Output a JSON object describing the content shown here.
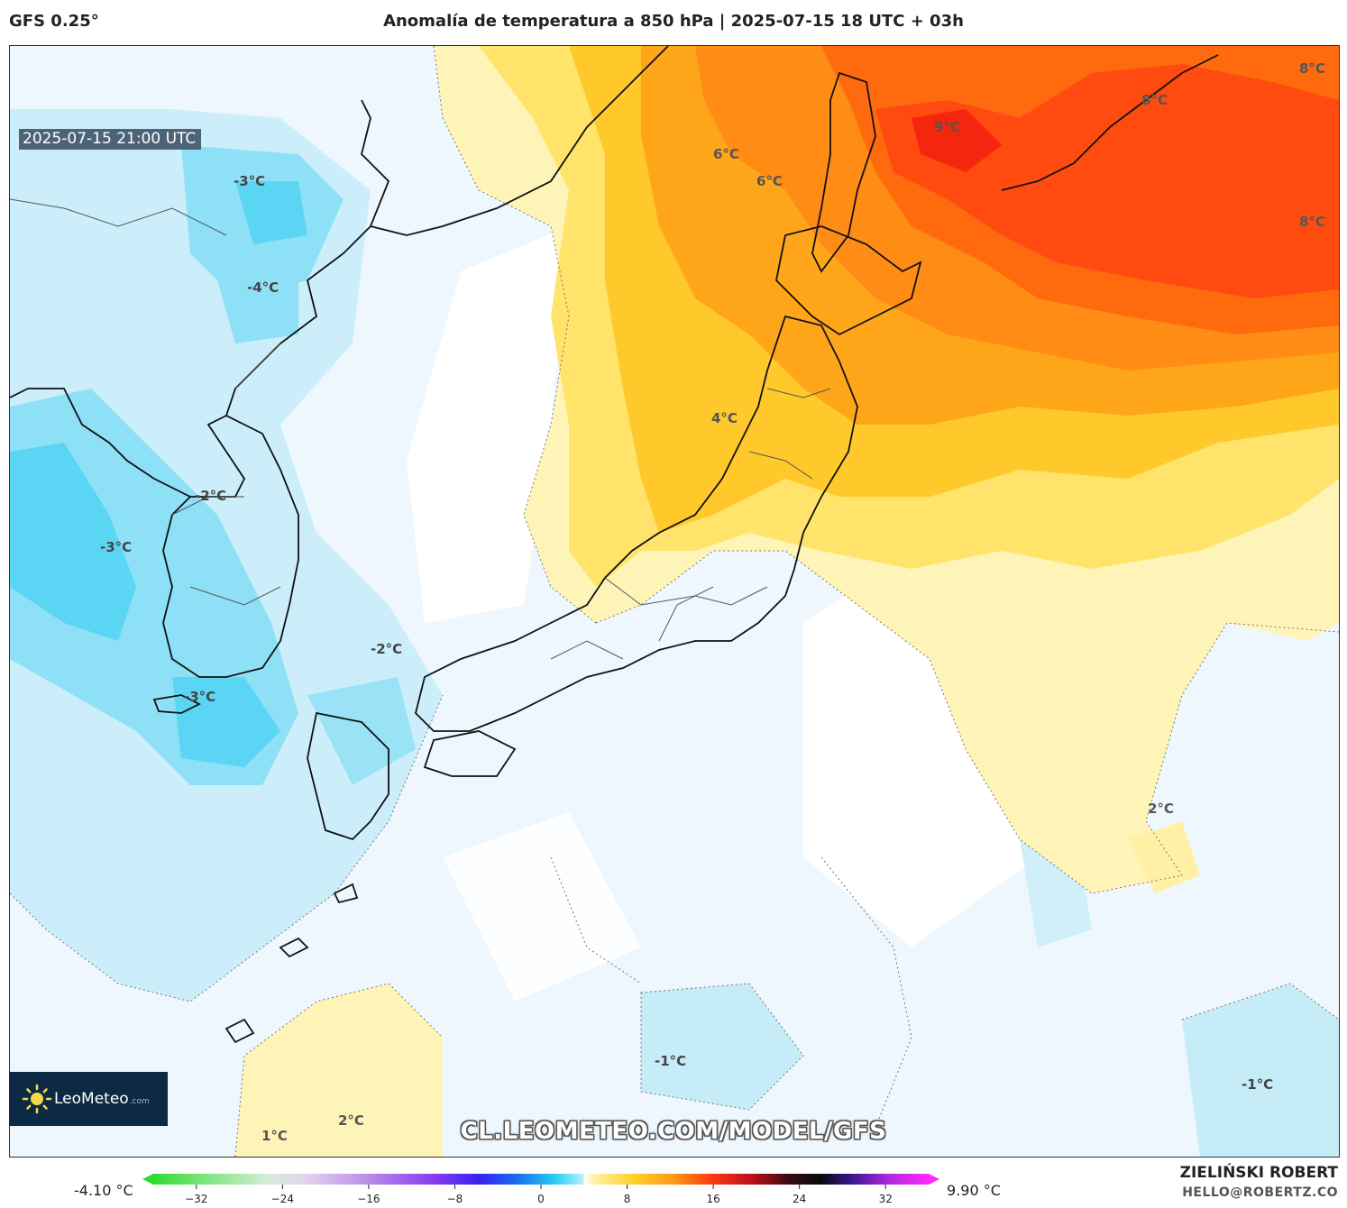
{
  "header": {
    "model": "GFS 0.25°",
    "title": "Anomalía de temperatura a 850 hPa | 2025-07-15 18 UTC + 03h"
  },
  "map": {
    "valid_time": "2025-07-15 21:00 UTC",
    "region": "Japan / Korea / Northwest Pacific",
    "labels": [
      {
        "text": "9°C",
        "value": 9
      },
      {
        "text": "8°C",
        "value": 8
      },
      {
        "text": "8°C",
        "value": 8
      },
      {
        "text": "8°C",
        "value": 8
      },
      {
        "text": "6°C",
        "value": 6
      },
      {
        "text": "6°C",
        "value": 6
      },
      {
        "text": "4°C",
        "value": 4
      },
      {
        "text": "-3°C",
        "value": -3
      },
      {
        "text": "-4°C",
        "value": -4
      },
      {
        "text": "-2°C",
        "value": -2
      },
      {
        "text": "-3°C",
        "value": -3
      },
      {
        "text": "-2°C",
        "value": -2
      },
      {
        "text": "-3°C",
        "value": -3
      },
      {
        "text": "2°C",
        "value": 2
      },
      {
        "text": "-1°C",
        "value": -1
      },
      {
        "text": "-1°C",
        "value": -1
      },
      {
        "text": "2°C",
        "value": 2
      },
      {
        "text": "1°C",
        "value": 1
      }
    ]
  },
  "logo": {
    "brand": "LeoMeteo",
    "domain": ".com"
  },
  "watermark": "CL.LEOMETEO.COM/MODEL/GFS",
  "colorbar": {
    "min_label": "-4.10 °C",
    "max_label": "9.90 °C",
    "ticks": [
      "−32",
      "−24",
      "−16",
      "−8",
      "0",
      "8",
      "16",
      "24",
      "32"
    ],
    "tick_values": [
      -32,
      -24,
      -16,
      -8,
      0,
      8,
      16,
      24,
      32
    ],
    "range": [
      -36,
      36
    ]
  },
  "author": {
    "name": "ZIELIŃSKI ROBERT",
    "email": "HELLO@ROBERTZ.CO"
  }
}
